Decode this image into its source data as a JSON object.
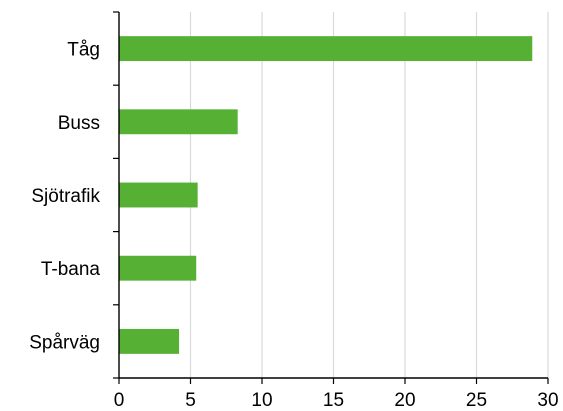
{
  "chart_data": {
    "type": "bar",
    "orientation": "horizontal",
    "categories": [
      "Tåg",
      "Buss",
      "Sjötrafik",
      "T-bana",
      "Spårväg"
    ],
    "values": [
      28.9,
      8.3,
      5.5,
      5.4,
      4.2
    ],
    "xlim": [
      0,
      30
    ],
    "xticks": [
      "0",
      "5",
      "10",
      "15",
      "20",
      "25",
      "30"
    ],
    "title": "",
    "xlabel": "",
    "ylabel": "",
    "grid": "vertical",
    "legend": "none",
    "colors": {
      "bar": "#55b033",
      "grid": "#d9d9d9",
      "axis": "#000000"
    }
  }
}
